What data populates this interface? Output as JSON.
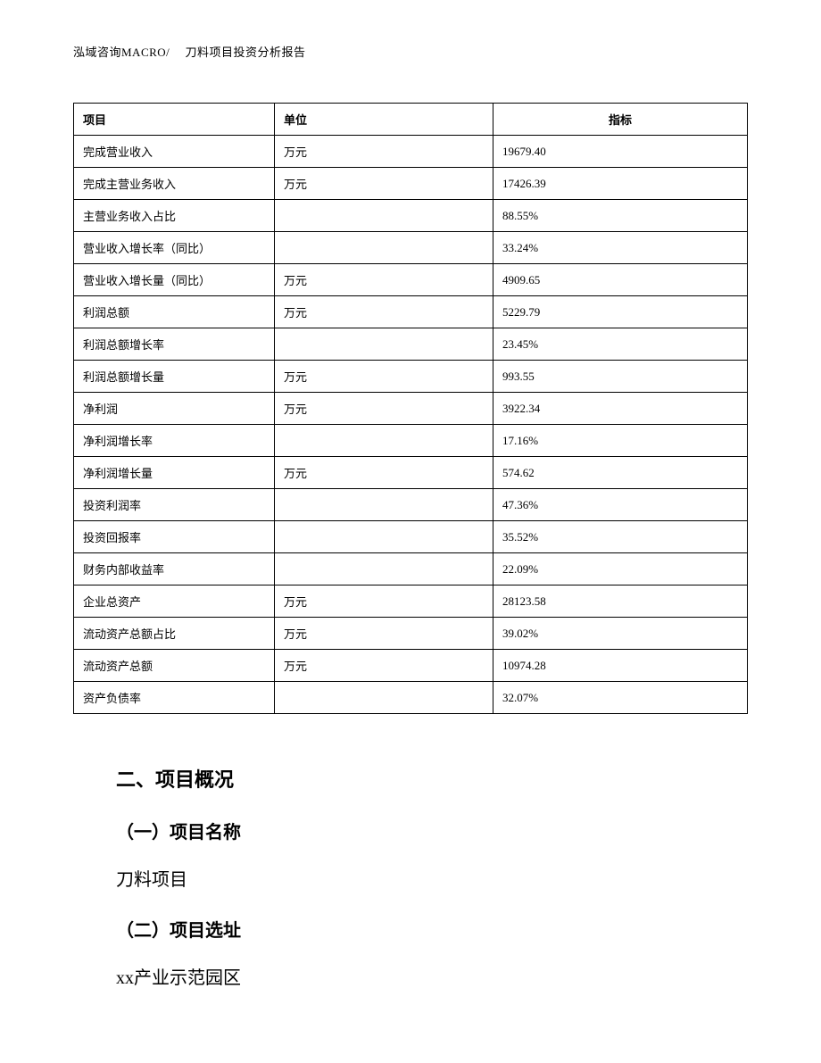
{
  "header": {
    "text": "泓域咨询MACRO/　 刀料项目投资分析报告"
  },
  "table": {
    "columns": {
      "item": "项目",
      "unit": "单位",
      "value": "指标"
    },
    "rows": [
      {
        "item": "完成营业收入",
        "unit": "万元",
        "value": "19679.40"
      },
      {
        "item": "完成主营业务收入",
        "unit": "万元",
        "value": "17426.39"
      },
      {
        "item": "主营业务收入占比",
        "unit": "",
        "value": "88.55%"
      },
      {
        "item": "营业收入增长率（同比）",
        "unit": "",
        "value": "33.24%"
      },
      {
        "item": "营业收入增长量（同比）",
        "unit": "万元",
        "value": "4909.65"
      },
      {
        "item": "利润总额",
        "unit": "万元",
        "value": "5229.79"
      },
      {
        "item": "利润总额增长率",
        "unit": "",
        "value": "23.45%"
      },
      {
        "item": "利润总额增长量",
        "unit": "万元",
        "value": "993.55"
      },
      {
        "item": "净利润",
        "unit": "万元",
        "value": "3922.34"
      },
      {
        "item": "净利润增长率",
        "unit": "",
        "value": "17.16%"
      },
      {
        "item": "净利润增长量",
        "unit": "万元",
        "value": "574.62"
      },
      {
        "item": "投资利润率",
        "unit": "",
        "value": "47.36%"
      },
      {
        "item": "投资回报率",
        "unit": "",
        "value": "35.52%"
      },
      {
        "item": "财务内部收益率",
        "unit": "",
        "value": "22.09%"
      },
      {
        "item": "企业总资产",
        "unit": "万元",
        "value": "28123.58"
      },
      {
        "item": "流动资产总额占比",
        "unit": "万元",
        "value": "39.02%"
      },
      {
        "item": "流动资产总额",
        "unit": "万元",
        "value": "10974.28"
      },
      {
        "item": "资产负债率",
        "unit": "",
        "value": "32.07%"
      }
    ]
  },
  "content": {
    "section_title": "二、项目概况",
    "sub1_title": "（一）项目名称",
    "sub1_body": "刀料项目",
    "sub2_title": "（二）项目选址",
    "sub2_body": "xx产业示范园区"
  }
}
